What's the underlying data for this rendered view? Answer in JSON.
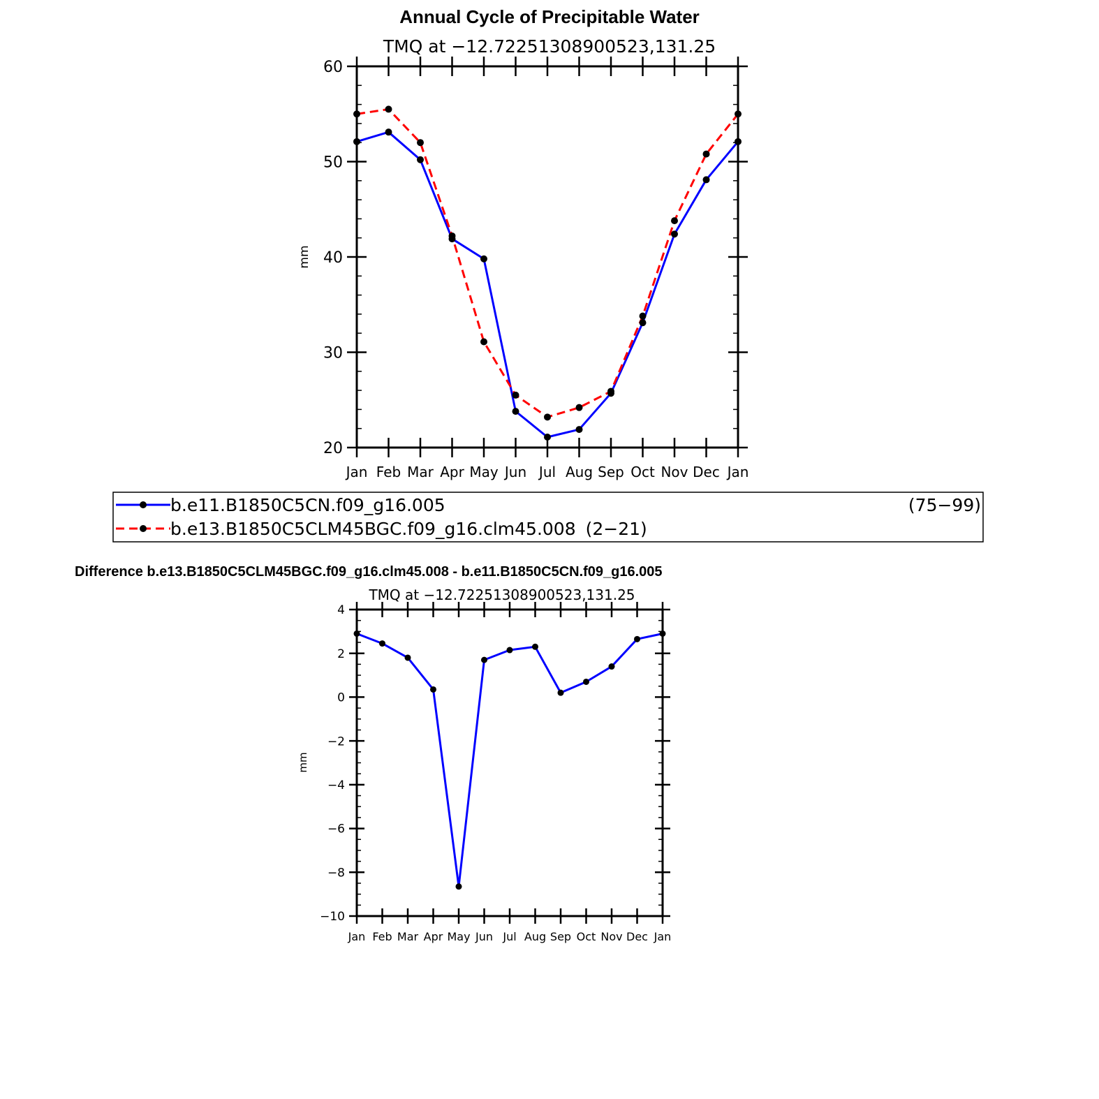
{
  "colors": {
    "series1": "#0000ff",
    "series2": "#ff0000",
    "marker": "#000000",
    "axis": "#000000"
  },
  "chart_data": [
    {
      "type": "line",
      "title": "Annual Cycle of Precipitable Water",
      "subtitle": "TMQ  at  −12.72251308900523,131.25",
      "xlabel": "",
      "ylabel": "mm",
      "categories": [
        "Jan",
        "Feb",
        "Mar",
        "Apr",
        "May",
        "Jun",
        "Jul",
        "Aug",
        "Sep",
        "Oct",
        "Nov",
        "Dec",
        "Jan"
      ],
      "ylim": [
        20,
        60
      ],
      "yticks": [
        20,
        30,
        40,
        50,
        60
      ],
      "ytick_labels": [
        "20",
        "30",
        "40",
        "50",
        "60"
      ],
      "series": [
        {
          "name": "b.e11.B1850C5CN.f09_g16.005",
          "years": "(75−99)",
          "style": "solid",
          "values": [
            52.1,
            53.1,
            50.2,
            41.9,
            39.8,
            23.8,
            21.1,
            21.9,
            25.7,
            33.1,
            42.4,
            48.1,
            52.1
          ]
        },
        {
          "name": "b.e13.B1850C5CLM45BGC.f09_g16.clm45.008",
          "years": "(2−21)",
          "style": "dashed",
          "values": [
            55.0,
            55.5,
            52.0,
            42.2,
            31.1,
            25.5,
            23.2,
            24.2,
            25.9,
            33.8,
            43.8,
            50.8,
            55.0
          ]
        }
      ],
      "legend": "below"
    },
    {
      "type": "line",
      "title": "Difference b.e13.B1850C5CLM45BGC.f09_g16.clm45.008 - b.e11.B1850C5CN.f09_g16.005",
      "subtitle": "TMQ  at  −12.72251308900523,131.25",
      "xlabel": "",
      "ylabel": "mm",
      "categories": [
        "Jan",
        "Feb",
        "Mar",
        "Apr",
        "May",
        "Jun",
        "Jul",
        "Aug",
        "Sep",
        "Oct",
        "Nov",
        "Dec",
        "Jan"
      ],
      "ylim": [
        -10,
        4
      ],
      "yticks": [
        -10,
        -8,
        -6,
        -4,
        -2,
        0,
        2,
        4
      ],
      "ytick_labels": [
        "−10",
        "−8",
        "−6",
        "−4",
        "−2",
        "0",
        "2",
        "4"
      ],
      "series": [
        {
          "name": "difference",
          "style": "solid",
          "values": [
            2.9,
            2.45,
            1.8,
            0.35,
            -8.65,
            1.7,
            2.15,
            2.3,
            0.2,
            0.7,
            1.4,
            2.65,
            2.9
          ]
        }
      ]
    }
  ]
}
